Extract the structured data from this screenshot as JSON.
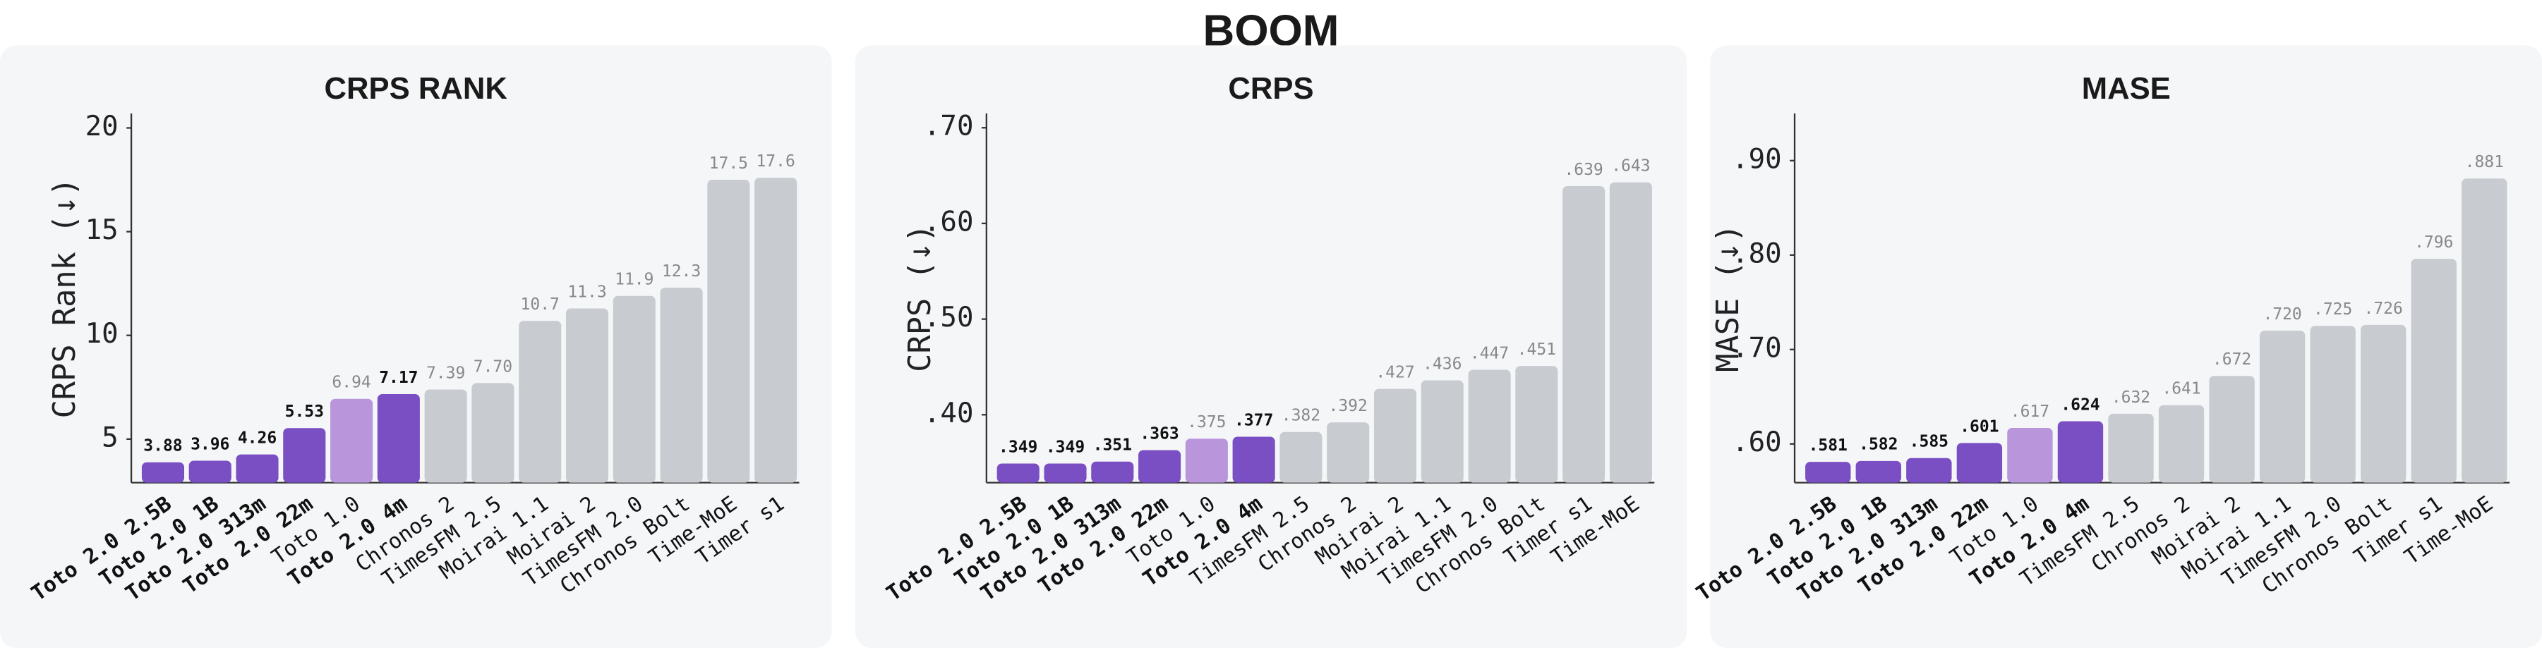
{
  "title": "BOOM",
  "chart_data": [
    {
      "type": "bar",
      "title": "CRPS RANK",
      "ylabel": "CRPS Rank (↓)",
      "categories": [
        "Toto 2.0 2.5B",
        "Toto 2.0 1B",
        "Toto 2.0 313m",
        "Toto 2.0 22m",
        "Toto 1.0",
        "Toto 2.0 4m",
        "Chronos 2",
        "TimesFM 2.5",
        "Moirai 1.1",
        "Moirai 2",
        "TimesFM 2.0",
        "Chronos Bolt",
        "Time-MoE",
        "Timer s1"
      ],
      "values": [
        3.88,
        3.96,
        4.26,
        5.53,
        6.94,
        7.17,
        7.39,
        7.7,
        10.7,
        11.3,
        11.9,
        12.3,
        17.5,
        17.6
      ],
      "value_labels": [
        "3.88",
        "3.96",
        "4.26",
        "5.53",
        "6.94",
        "7.17",
        "7.39",
        "7.70",
        "10.7",
        "11.3",
        "11.9",
        "12.3",
        "17.5",
        "17.6"
      ],
      "colors": [
        "#7b4fc4",
        "#7b4fc4",
        "#7b4fc4",
        "#7b4fc4",
        "#b996dc",
        "#7b4fc4",
        "#c8ccd1",
        "#c8ccd1",
        "#c8ccd1",
        "#c8ccd1",
        "#c8ccd1",
        "#c8ccd1",
        "#c8ccd1",
        "#c8ccd1"
      ],
      "ylim": [
        2.9,
        20.7
      ],
      "yticks": [
        5,
        10,
        15,
        20
      ]
    },
    {
      "type": "bar",
      "title": "CRPS",
      "ylabel": "CRPS (↓)",
      "categories": [
        "Toto 2.0 2.5B",
        "Toto 2.0 1B",
        "Toto 2.0 313m",
        "Toto 2.0 22m",
        "Toto 1.0",
        "Toto 2.0 4m",
        "TimesFM 2.5",
        "Chronos 2",
        "Moirai 2",
        "Moirai 1.1",
        "TimesFM 2.0",
        "Chronos Bolt",
        "Timer s1",
        "Time-MoE"
      ],
      "values": [
        0.349,
        0.349,
        0.351,
        0.363,
        0.375,
        0.377,
        0.382,
        0.392,
        0.427,
        0.436,
        0.447,
        0.451,
        0.639,
        0.643
      ],
      "value_labels": [
        ".349",
        ".349",
        ".351",
        ".363",
        ".375",
        ".377",
        ".382",
        ".392",
        ".427",
        ".436",
        ".447",
        ".451",
        ".639",
        ".643"
      ],
      "colors": [
        "#7b4fc4",
        "#7b4fc4",
        "#7b4fc4",
        "#7b4fc4",
        "#b996dc",
        "#7b4fc4",
        "#c8ccd1",
        "#c8ccd1",
        "#c8ccd1",
        "#c8ccd1",
        "#c8ccd1",
        "#c8ccd1",
        "#c8ccd1",
        "#c8ccd1"
      ],
      "ylim": [
        0.329,
        0.715
      ],
      "yticks": [
        {
          "value": 0.4,
          "label": ".40"
        },
        {
          "value": 0.5,
          "label": ".50"
        },
        {
          "value": 0.6,
          "label": ".60"
        },
        {
          "value": 0.7,
          "label": ".70"
        }
      ]
    },
    {
      "type": "bar",
      "title": "MASE",
      "ylabel": "MASE (↓)",
      "categories": [
        "Toto 2.0 2.5B",
        "Toto 2.0 1B",
        "Toto 2.0 313m",
        "Toto 2.0 22m",
        "Toto 1.0",
        "Toto 2.0 4m",
        "TimesFM 2.5",
        "Chronos 2",
        "Moirai 2",
        "Moirai 1.1",
        "TimesFM 2.0",
        "Chronos Bolt",
        "Timer s1",
        "Time-MoE"
      ],
      "values": [
        0.581,
        0.582,
        0.585,
        0.601,
        0.617,
        0.624,
        0.632,
        0.641,
        0.672,
        0.72,
        0.725,
        0.726,
        0.796,
        0.881
      ],
      "value_labels": [
        ".581",
        ".582",
        ".585",
        ".601",
        ".617",
        ".624",
        ".632",
        ".641",
        ".672",
        ".720",
        ".725",
        ".726",
        ".796",
        ".881"
      ],
      "colors": [
        "#7b4fc4",
        "#7b4fc4",
        "#7b4fc4",
        "#7b4fc4",
        "#b996dc",
        "#7b4fc4",
        "#c8ccd1",
        "#c8ccd1",
        "#c8ccd1",
        "#c8ccd1",
        "#c8ccd1",
        "#c8ccd1",
        "#c8ccd1",
        "#c8ccd1"
      ],
      "ylim": [
        0.559,
        0.95
      ],
      "yticks": [
        {
          "value": 0.6,
          "label": ".60"
        },
        {
          "value": 0.7,
          "label": ".70"
        },
        {
          "value": 0.8,
          "label": ".80"
        },
        {
          "value": 0.9,
          "label": ".90"
        }
      ]
    }
  ]
}
